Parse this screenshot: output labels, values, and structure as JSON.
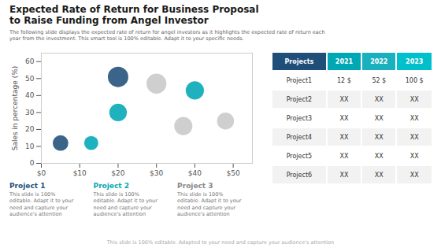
{
  "chart_data": {
    "type": "scatter",
    "title": "Expected Rate of Return for Business Proposal\nto Raise Funding from Angel Investor",
    "subtitle": "The following slide displays the expected rate of return for angel investors as it highlights the expected rate of return each\nyear from the investment. This smart tool is 100% editable. Adapt it to your specific needs.",
    "ylabel": "Sales in percentage (%)",
    "x": [
      5,
      13,
      20,
      20,
      30,
      37,
      40,
      48
    ],
    "values": [
      12,
      12,
      30,
      51,
      47,
      22,
      43,
      25
    ],
    "sizes": [
      220,
      180,
      280,
      380,
      360,
      300,
      300,
      260
    ],
    "colors": [
      "#1f4e79",
      "#00a7b5",
      "#00a7b5",
      "#1f4e79",
      "#c8c8c8",
      "#c8c8c8",
      "#00a7b5",
      "#c8c8c8"
    ],
    "xlim": [
      0,
      55
    ],
    "ylim": [
      0,
      65
    ],
    "xticks": [
      {
        "value": 0,
        "label": "$0"
      },
      {
        "value": 10,
        "label": "$10"
      },
      {
        "value": 20,
        "label": "$20"
      },
      {
        "value": 30,
        "label": "$30"
      },
      {
        "value": 40,
        "label": "$40"
      },
      {
        "value": 50,
        "label": "$50"
      }
    ],
    "yticks": [
      0,
      10,
      20,
      30,
      40,
      50,
      60
    ],
    "grid": false,
    "projects": [
      {
        "name": "Project 1",
        "color": "#1f4e79",
        "desc": "This slide is 100%\neditable. Adapt it to your\nneed and capture your\naudience's attention"
      },
      {
        "name": "Project 2",
        "color": "#00a7b5",
        "desc": "This slide is 100%\neditable. Adapt it to your\nneed and capture your\naudience's attention"
      },
      {
        "name": "Project 3",
        "color": "#888888",
        "desc": "This slide is 100%\neditable. Adapt it to your\nneed and capture your\naudience's attention"
      }
    ],
    "table": {
      "headers": [
        "Projects",
        "2021",
        "2022",
        "2023"
      ],
      "header_colors": [
        "#1f4e79",
        "#00a7b5",
        "#1ab0be",
        "#00c0cc"
      ],
      "header_text_color": "#ffffff",
      "rows": [
        [
          "Project1",
          "12 $",
          "52 $",
          "100 $"
        ],
        [
          "Project2",
          "XX",
          "XX",
          "XX"
        ],
        [
          "Project3",
          "XX",
          "XX",
          "XX"
        ],
        [
          "Project4",
          "XX",
          "XX",
          "XX"
        ],
        [
          "Project5",
          "XX",
          "XX",
          "XX"
        ],
        [
          "Project6",
          "XX",
          "XX",
          "XX"
        ]
      ],
      "row_colors": [
        "#ffffff",
        "#f2f2f2",
        "#ffffff",
        "#f2f2f2",
        "#ffffff",
        "#f2f2f2"
      ]
    },
    "footer": "This slide is 100% editable. Adapted to your need and capture your audience's attention"
  }
}
